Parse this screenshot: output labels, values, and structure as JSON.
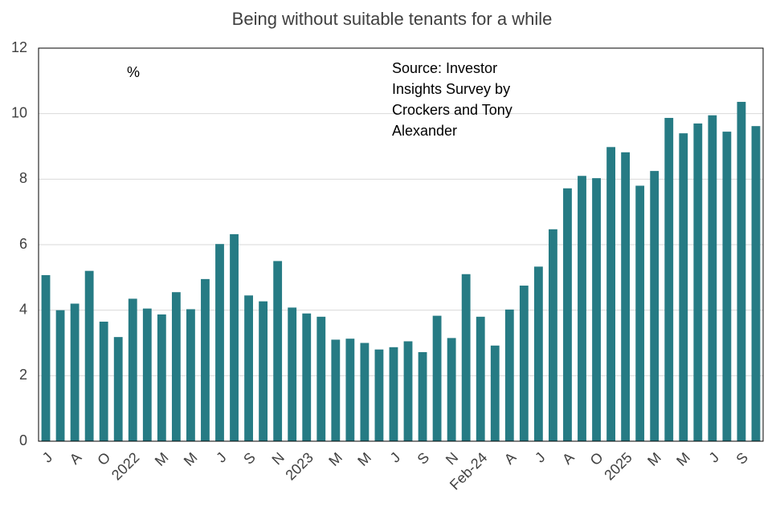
{
  "chart_data": {
    "type": "bar",
    "title": "Being without suitable tenants for a while",
    "annotations": [
      "%",
      "Source: Investor Insights Survey by Crockers and Tony Alexander"
    ],
    "categories": [
      "J",
      null,
      "A",
      null,
      "O",
      null,
      "2022",
      null,
      "M",
      null,
      "M",
      null,
      "J",
      null,
      "S",
      null,
      "N",
      null,
      "2023",
      null,
      "M",
      null,
      "M",
      null,
      "J",
      null,
      "S",
      null,
      "N",
      null,
      "Feb-24",
      null,
      "A",
      null,
      "J",
      null,
      "A",
      null,
      "O",
      null,
      "2025",
      null,
      "M",
      null,
      "M",
      null,
      "J",
      null,
      "S",
      null
    ],
    "values": [
      5.07,
      4.0,
      4.2,
      5.2,
      3.65,
      3.18,
      4.35,
      4.05,
      3.87,
      4.55,
      4.03,
      4.95,
      6.02,
      6.32,
      4.45,
      4.27,
      5.5,
      4.08,
      3.9,
      3.8,
      3.1,
      3.13,
      3.0,
      2.8,
      2.87,
      3.05,
      2.72,
      3.83,
      3.15,
      5.1,
      3.8,
      2.92,
      4.02,
      4.75,
      5.33,
      6.47,
      7.72,
      8.1,
      8.03,
      8.98,
      8.82,
      7.8,
      8.25,
      9.87,
      9.4,
      9.7,
      9.95,
      9.45,
      10.36,
      9.62
    ],
    "color": "#267b84",
    "ylim": [
      0,
      12
    ],
    "yticks": [
      0,
      2,
      4,
      6,
      8,
      10,
      12
    ],
    "grid": true
  }
}
